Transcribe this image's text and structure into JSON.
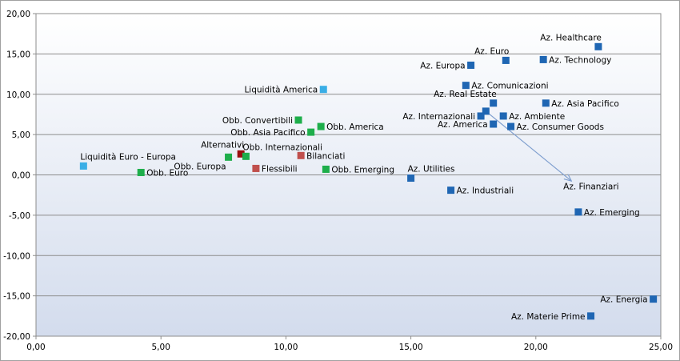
{
  "chart_data": {
    "type": "scatter",
    "title": "",
    "xlabel": "",
    "ylabel": "",
    "xlim": [
      0,
      25
    ],
    "ylim": [
      -20,
      20
    ],
    "grid": true,
    "x_ticks": [
      "0,00",
      "5,00",
      "10,00",
      "15,00",
      "20,00",
      "25,00"
    ],
    "y_ticks": [
      "20,00",
      "15,00",
      "10,00",
      "5,00",
      "0,00",
      "-5,00",
      "-10,00",
      "-15,00",
      "-20,00"
    ],
    "colors": {
      "azionari": "#1f66b3",
      "obbligazionari": "#1eae4b",
      "liquidita": "#3aaee6",
      "flessibili_bilanciati": "#c0504d",
      "alternativi": "#9b1010",
      "arrow": "#7f9fcf",
      "background_top": "#ffffff",
      "background_bottom": "#d3dced"
    },
    "points": [
      {
        "label": "Az. Healthcare",
        "x": 22.5,
        "y": 15.9,
        "color": "#1f66b3",
        "lpos": "above-left"
      },
      {
        "label": "Az. Euro",
        "x": 18.8,
        "y": 14.2,
        "color": "#1f66b3",
        "lpos": "above-left"
      },
      {
        "label": "Az. Technology",
        "x": 20.3,
        "y": 14.3,
        "color": "#1f66b3",
        "lpos": "right"
      },
      {
        "label": "Az. Europa",
        "x": 17.4,
        "y": 13.6,
        "color": "#1f66b3",
        "lpos": "left"
      },
      {
        "label": "Az. Comunicazioni",
        "x": 17.2,
        "y": 11.1,
        "color": "#1f66b3",
        "lpos": "right"
      },
      {
        "label": "Liquidità America",
        "x": 11.5,
        "y": 10.6,
        "color": "#3aaee6",
        "lpos": "left"
      },
      {
        "label": "Az. Real Estate",
        "x": 18.3,
        "y": 8.9,
        "color": "#1f66b3",
        "lpos": "above-left"
      },
      {
        "label": "Az. Asia Pacifico",
        "x": 20.4,
        "y": 8.9,
        "color": "#1f66b3",
        "lpos": "right"
      },
      {
        "label": "",
        "x": 18.0,
        "y": 7.9,
        "color": "#1f66b3",
        "lpos": "none"
      },
      {
        "label": "Az. Internazionali",
        "x": 17.8,
        "y": 7.3,
        "color": "#1f66b3",
        "lpos": "left"
      },
      {
        "label": "Az. Ambiente",
        "x": 18.7,
        "y": 7.3,
        "color": "#1f66b3",
        "lpos": "right"
      },
      {
        "label": "Az. America",
        "x": 18.3,
        "y": 6.3,
        "color": "#1f66b3",
        "lpos": "left"
      },
      {
        "label": "Az. Consumer Goods",
        "x": 19.0,
        "y": 6.0,
        "color": "#1f66b3",
        "lpos": "right"
      },
      {
        "label": "Obb. Convertibili",
        "x": 10.5,
        "y": 6.8,
        "color": "#1eae4b",
        "lpos": "left"
      },
      {
        "label": "Obb. America",
        "x": 11.4,
        "y": 6.0,
        "color": "#1eae4b",
        "lpos": "right"
      },
      {
        "label": "Obb. Asia Pacifico",
        "x": 11.0,
        "y": 5.3,
        "color": "#1eae4b",
        "lpos": "left"
      },
      {
        "label": "Alternativi",
        "x": 8.2,
        "y": 2.6,
        "color": "#9b1010",
        "lpos": "above-left"
      },
      {
        "label": "Obb. Internazionali",
        "x": 8.4,
        "y": 2.3,
        "color": "#1eae4b",
        "lpos": "above-right"
      },
      {
        "label": "Bilanciati",
        "x": 10.6,
        "y": 2.4,
        "color": "#c0504d",
        "lpos": "right"
      },
      {
        "label": "Obb. Europa",
        "x": 7.7,
        "y": 2.2,
        "color": "#1eae4b",
        "lpos": "below-left"
      },
      {
        "label": "Flessibili",
        "x": 8.8,
        "y": 0.8,
        "color": "#c0504d",
        "lpos": "right"
      },
      {
        "label": "Obb. Emerging",
        "x": 11.6,
        "y": 0.7,
        "color": "#1eae4b",
        "lpos": "right"
      },
      {
        "label": "Liquidità Euro - Europa",
        "x": 1.9,
        "y": 1.1,
        "color": "#3aaee6",
        "lpos": "above-right"
      },
      {
        "label": "Obb. Euro",
        "x": 4.2,
        "y": 0.3,
        "color": "#1eae4b",
        "lpos": "right"
      },
      {
        "label": "Az. Utilities",
        "x": 15.0,
        "y": -0.4,
        "color": "#1f66b3",
        "lpos": "above-right"
      },
      {
        "label": "Az. Industriali",
        "x": 16.6,
        "y": -1.9,
        "color": "#1f66b3",
        "lpos": "right"
      },
      {
        "label": "Az. Emerging",
        "x": 21.7,
        "y": -4.6,
        "color": "#1f66b3",
        "lpos": "right"
      },
      {
        "label": "Az. Energia",
        "x": 24.7,
        "y": -15.4,
        "color": "#1f66b3",
        "lpos": "left"
      },
      {
        "label": "Az. Materie Prime",
        "x": 22.2,
        "y": -17.5,
        "color": "#1f66b3",
        "lpos": "left"
      }
    ],
    "annotations": [
      {
        "text": "Az. Finanziari",
        "from": [
          18.0,
          7.9
        ],
        "to": [
          21.4,
          -0.7
        ],
        "label_at": [
          21.1,
          -1.4
        ]
      }
    ]
  }
}
